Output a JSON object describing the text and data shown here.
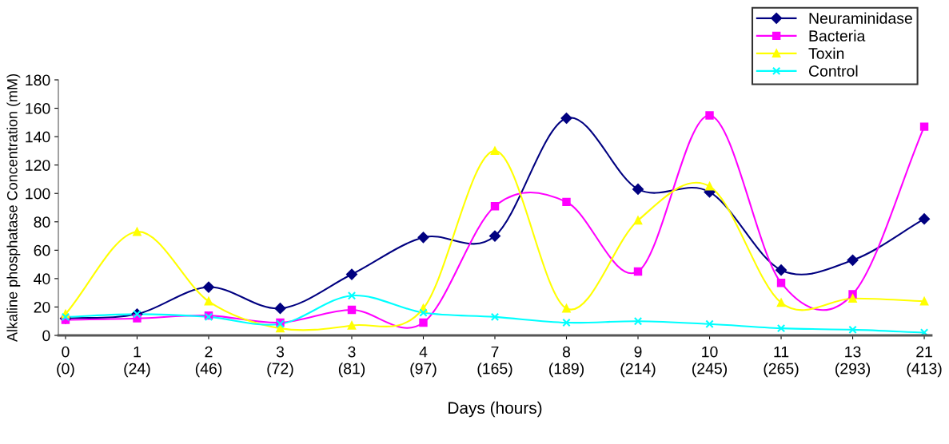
{
  "chart_data": {
    "type": "line",
    "xlabel": "Days (hours)",
    "ylabel": "Alkaline phosphatase Concentration (mM)",
    "categories": [
      "0\n(0)",
      "1\n(24)",
      "2\n(46)",
      "3\n(72)",
      "3\n(81)",
      "4\n(97)",
      "7\n(165)",
      "8\n(189)",
      "9\n(214)",
      "10\n(245)",
      "11\n(265)",
      "13\n(293)",
      "21\n(413)"
    ],
    "series": [
      {
        "name": "Neuraminidase",
        "color": "#000080",
        "marker": "diamond",
        "values": [
          12,
          15,
          34,
          19,
          43,
          69,
          70,
          153,
          103,
          101,
          46,
          53,
          82
        ]
      },
      {
        "name": "Bacteria",
        "color": "#ff00ff",
        "marker": "square",
        "values": [
          11,
          12,
          14,
          9,
          18,
          9,
          91,
          94,
          45,
          155,
          37,
          29,
          147
        ]
      },
      {
        "name": "Toxin",
        "color": "#ffff00",
        "marker": "triangle",
        "values": [
          15,
          73,
          24,
          5,
          7,
          19,
          130,
          19,
          81,
          105,
          23,
          26,
          24
        ]
      },
      {
        "name": "Control",
        "color": "#00ffff",
        "marker": "cross",
        "values": [
          13,
          15,
          13,
          8,
          28,
          16,
          13,
          9,
          10,
          8,
          5,
          4,
          2
        ]
      }
    ],
    "ylim": [
      0,
      180
    ],
    "yticks": [
      0,
      20,
      40,
      60,
      80,
      100,
      120,
      140,
      160,
      180
    ],
    "grid": false,
    "legend": "top right",
    "line_style": "solid"
  }
}
